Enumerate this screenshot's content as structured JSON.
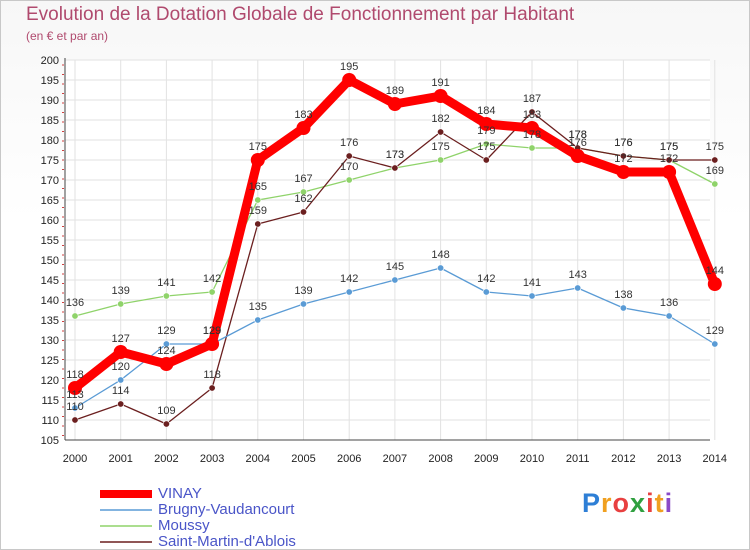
{
  "chart_data": {
    "type": "line",
    "title": "Evolution de la Dotation Globale de Fonctionnement par Habitant",
    "subtitle": "(en € et par an)",
    "x": [
      "2000",
      "2001",
      "2002",
      "2003",
      "2004",
      "2005",
      "2006",
      "2007",
      "2008",
      "2009",
      "2010",
      "2011",
      "2012",
      "2013",
      "2014"
    ],
    "ylim": [
      105,
      200
    ],
    "yticks": [
      105,
      110,
      115,
      120,
      125,
      130,
      135,
      140,
      145,
      150,
      155,
      160,
      165,
      170,
      175,
      180,
      185,
      190,
      195,
      200
    ],
    "grid": true,
    "series": [
      {
        "name": "VINAY",
        "color": "#ff0000",
        "values": [
          118,
          127,
          124,
          129,
          175,
          183,
          195,
          189,
          191,
          184,
          183,
          176,
          172,
          172,
          144
        ],
        "labels": [
          "118",
          "127",
          "124",
          "129",
          "175",
          "183",
          "195",
          "189",
          "191",
          "184",
          "183",
          "176",
          "172",
          "172",
          "144"
        ]
      },
      {
        "name": "Brugny-Vaudancourt",
        "color": "#5a9bd5",
        "values": [
          113,
          120,
          129,
          129,
          135,
          139,
          142,
          145,
          148,
          142,
          141,
          143,
          138,
          136,
          129
        ],
        "labels": [
          "113",
          "120",
          "129",
          "129",
          "135",
          "139",
          "142",
          "145",
          "148",
          "142",
          "141",
          "143",
          "138",
          "136",
          "129"
        ]
      },
      {
        "name": "Moussy",
        "color": "#8fd36a",
        "values": [
          136,
          139,
          141,
          142,
          165,
          167,
          170,
          173,
          175,
          179,
          178,
          178,
          176,
          175,
          169
        ],
        "labels": [
          "136",
          "139",
          "141",
          "142",
          "165",
          "167",
          "170",
          "173",
          "175",
          "179",
          "178",
          "178",
          "176",
          "175",
          "169"
        ]
      },
      {
        "name": "Saint-Martin-d'Ablois",
        "color": "#6b1f1f",
        "values": [
          110,
          114,
          109,
          118,
          159,
          162,
          176,
          173,
          182,
          175,
          187,
          178,
          176,
          175,
          175
        ],
        "labels": [
          "110",
          "114",
          "109",
          "118",
          "159",
          "162",
          "176",
          "173",
          "182",
          "175",
          "187",
          "178",
          "176",
          "175",
          "175"
        ]
      }
    ]
  },
  "logo": {
    "letters": [
      "P",
      "r",
      "o",
      "x",
      "i",
      "t",
      "i"
    ],
    "colors": [
      "#2e7fd6",
      "#f0a020",
      "#e84040",
      "#30a040",
      "#e84040",
      "#f0a020",
      "#8a4ac8"
    ]
  }
}
